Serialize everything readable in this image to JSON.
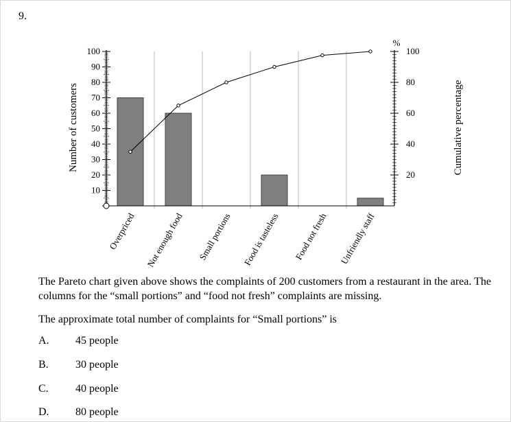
{
  "question": {
    "number": "9.",
    "body": "The Pareto chart given above shows the complaints of 200 customers from a restaurant in the area. The columns for the “small portions” and “food not fresh” complaints are missing.",
    "prompt": "The approximate total number of complaints for “Small portions” is",
    "options": [
      {
        "letter": "A.",
        "text": "45 people"
      },
      {
        "letter": "B.",
        "text": "30 people"
      },
      {
        "letter": "C.",
        "text": "40 people"
      },
      {
        "letter": "D.",
        "text": "80 people"
      }
    ]
  },
  "chart_data": {
    "type": "bar",
    "categories": [
      "Overpriced",
      "Not enough food",
      "Small portions",
      "Food is tasteless",
      "Food not fresh",
      "Unfriendly staff"
    ],
    "values": [
      70,
      60,
      null,
      20,
      null,
      5
    ],
    "ylabel": "Number of customers",
    "ylim": [
      0,
      100
    ],
    "yticks": [
      100,
      90,
      80,
      70,
      60,
      50,
      40,
      30,
      20,
      10
    ],
    "y_zero_marker": "0",
    "y2label": "Cumulative percentage",
    "y2unit": "%",
    "y2lim": [
      0,
      100
    ],
    "y2ticks": [
      100,
      80,
      60,
      40,
      20
    ],
    "series": [
      {
        "values": [
          70,
          60,
          null,
          20,
          null,
          5
        ],
        "kind": "bar",
        "axis": "left"
      },
      {
        "values": [
          35,
          65,
          80,
          90,
          97.5,
          100
        ],
        "kind": "line",
        "axis": "right"
      }
    ],
    "colors": {
      "bar": "#7f7f7f",
      "line": "#000000"
    }
  }
}
